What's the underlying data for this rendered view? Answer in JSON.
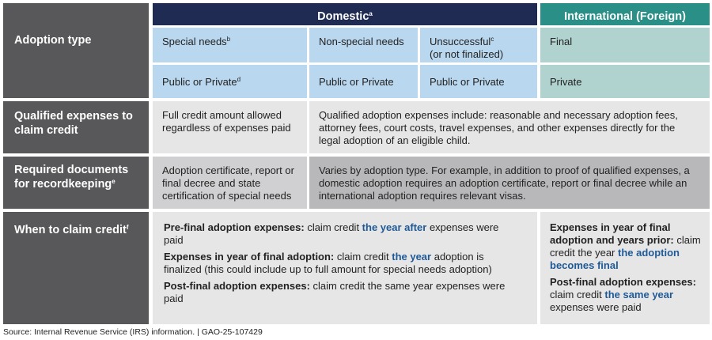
{
  "header": {
    "domestic": "Domestic",
    "domestic_note": "a",
    "international": "International (Foreign)"
  },
  "rows": {
    "adoption_type": {
      "label": "Adoption type",
      "special_needs": "Special needs",
      "special_needs_note": "b",
      "non_special_needs": "Non-special needs",
      "unsuccessful": "Unsuccessful",
      "unsuccessful_note": "c",
      "unsuccessful_sub": "(or not finalized)",
      "final": "Final",
      "public_private_1": "Public or Private",
      "public_private_1_note": "d",
      "public_private_2": "Public or Private",
      "public_private_3": "Public or Private",
      "private": "Private"
    },
    "qualified": {
      "label": "Qualified expenses to claim credit",
      "special": "Full credit amount allowed regardless of expenses paid",
      "others": "Qualified adoption expenses include: reasonable and necessary adoption fees, attorney fees, court costs, travel expenses, and other expenses directly for the legal adoption of an eligible child."
    },
    "documents": {
      "label": "Required documents for recordkeeping",
      "label_note": "e",
      "special": "Adoption certificate, report or final decree and state certification of special needs",
      "others": "Varies by adoption type. For example, in addition to proof of qualified expenses, a domestic adoption requires an adoption certificate, report or final decree while an international adoption requires relevant visas."
    },
    "when": {
      "label": "When to claim credit",
      "label_note": "f",
      "pre_bold": "Pre-final adoption expenses:",
      "pre_text": " claim credit ",
      "pre_hl": "the year after",
      "pre_tail": " expenses were paid",
      "year_bold": "Expenses in year of final adoption:",
      "year_text": " claim credit ",
      "year_hl": "the year",
      "year_tail": " adoption is finalized (this could include up to full amount for special needs adoption)",
      "post_bold": "Post-final adoption expenses:",
      "post_text": " claim credit the same year expenses were paid",
      "intl_bold1": "Expenses in year of final adoption and years prior:",
      "intl_text1": " claim credit the year ",
      "intl_hl1": "the adoption becomes final",
      "intl_bold2": "Post-final adoption expenses:",
      "intl_text2": " claim credit ",
      "intl_hl2": "the same year",
      "intl_tail2": " expenses were paid"
    }
  },
  "footer": {
    "source": "Source: Internal Revenue Service (IRS) information.  |  GAO-25-107429"
  }
}
